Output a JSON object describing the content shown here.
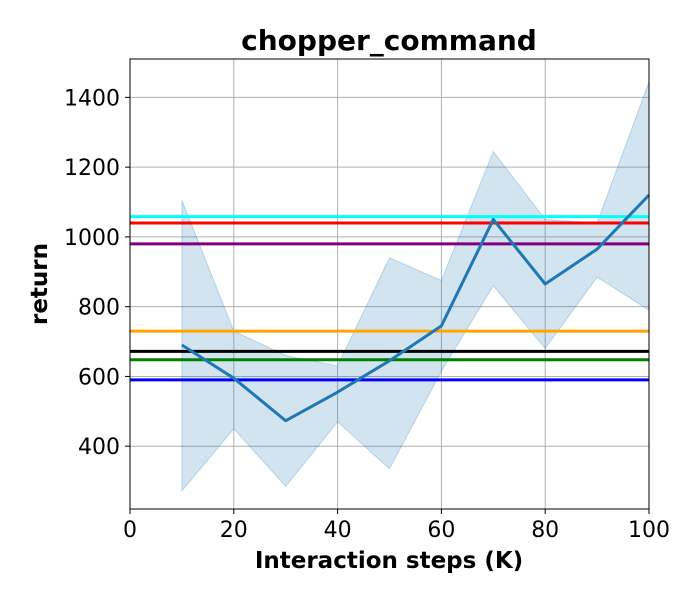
{
  "chart_data": {
    "type": "line",
    "title": "chopper_command",
    "xlabel": "Interaction steps (K)",
    "ylabel": "return",
    "xlim": [
      0,
      100
    ],
    "ylim": [
      220,
      1510
    ],
    "xticks": [
      0,
      20,
      40,
      60,
      80,
      100
    ],
    "yticks": [
      400,
      600,
      800,
      1000,
      1200,
      1400
    ],
    "grid": true,
    "x": [
      10,
      20,
      30,
      40,
      50,
      60,
      70,
      80,
      90,
      100
    ],
    "series": [
      {
        "color": "#1f77b4",
        "values": [
          690,
          595,
          473,
          555,
          645,
          745,
          1050,
          865,
          965,
          1120
        ],
        "band_lower": [
          272,
          450,
          285,
          470,
          335,
          615,
          860,
          680,
          885,
          790
        ],
        "band_upper": [
          1105,
          730,
          660,
          630,
          940,
          875,
          1245,
          1050,
          1040,
          1445
        ]
      }
    ],
    "reference_lines": [
      {
        "y": 1058,
        "color": "#00ffff"
      },
      {
        "y": 1040,
        "color": "#ff0000"
      },
      {
        "y": 980,
        "color": "#800080"
      },
      {
        "y": 730,
        "color": "#ffa500"
      },
      {
        "y": 672,
        "color": "#000000"
      },
      {
        "y": 648,
        "color": "#008000"
      },
      {
        "y": 590,
        "color": "#0000ff"
      }
    ]
  }
}
